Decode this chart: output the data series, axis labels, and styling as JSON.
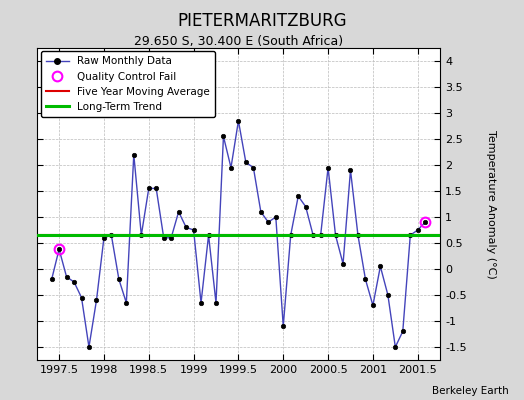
{
  "title": "PIETERMARITZBURG",
  "subtitle": "29.650 S, 30.400 E (South Africa)",
  "ylabel": "Temperature Anomaly (°C)",
  "credit": "Berkeley Earth",
  "xlim": [
    1997.25,
    2001.75
  ],
  "ylim": [
    -1.75,
    4.25
  ],
  "yticks": [
    -1.5,
    -1.0,
    -0.5,
    0.0,
    0.5,
    1.0,
    1.5,
    2.0,
    2.5,
    3.0,
    3.5,
    4.0
  ],
  "xticks": [
    1997.5,
    1998.0,
    1998.5,
    1999.0,
    1999.5,
    2000.0,
    2000.5,
    2001.0,
    2001.5
  ],
  "xtick_labels": [
    "1997.5",
    "1998",
    "1998.5",
    "1999",
    "1999.5",
    "2000",
    "2000.5",
    "2001",
    "2001.5"
  ],
  "long_term_trend_y": 0.65,
  "raw_data": [
    [
      1997.417,
      -0.2
    ],
    [
      1997.5,
      0.38
    ],
    [
      1997.583,
      -0.15
    ],
    [
      1997.667,
      -0.25
    ],
    [
      1997.75,
      -0.55
    ],
    [
      1997.833,
      -1.5
    ],
    [
      1997.917,
      -0.6
    ],
    [
      1998.0,
      0.6
    ],
    [
      1998.083,
      0.65
    ],
    [
      1998.167,
      -0.2
    ],
    [
      1998.25,
      -0.65
    ],
    [
      1998.333,
      2.2
    ],
    [
      1998.417,
      0.65
    ],
    [
      1998.5,
      1.55
    ],
    [
      1998.583,
      1.55
    ],
    [
      1998.667,
      0.6
    ],
    [
      1998.75,
      0.6
    ],
    [
      1998.833,
      1.1
    ],
    [
      1998.917,
      0.8
    ],
    [
      1999.0,
      0.75
    ],
    [
      1999.083,
      -0.65
    ],
    [
      1999.167,
      0.65
    ],
    [
      1999.25,
      -0.65
    ],
    [
      1999.333,
      2.55
    ],
    [
      1999.417,
      1.95
    ],
    [
      1999.5,
      2.85
    ],
    [
      1999.583,
      2.05
    ],
    [
      1999.667,
      1.95
    ],
    [
      1999.75,
      1.1
    ],
    [
      1999.833,
      0.9
    ],
    [
      1999.917,
      1.0
    ],
    [
      2000.0,
      -1.1
    ],
    [
      2000.083,
      0.65
    ],
    [
      2000.167,
      1.4
    ],
    [
      2000.25,
      1.2
    ],
    [
      2000.333,
      0.65
    ],
    [
      2000.417,
      0.65
    ],
    [
      2000.5,
      1.95
    ],
    [
      2000.583,
      0.65
    ],
    [
      2000.667,
      0.1
    ],
    [
      2000.75,
      1.9
    ],
    [
      2000.833,
      0.65
    ],
    [
      2000.917,
      -0.2
    ],
    [
      2001.0,
      -0.7
    ],
    [
      2001.083,
      0.05
    ],
    [
      2001.167,
      -0.5
    ],
    [
      2001.25,
      -1.5
    ],
    [
      2001.333,
      -1.2
    ],
    [
      2001.417,
      0.65
    ],
    [
      2001.5,
      0.75
    ],
    [
      2001.583,
      0.9
    ]
  ],
  "qc_fail_points": [
    [
      1997.5,
      0.38
    ],
    [
      2001.583,
      0.9
    ]
  ],
  "line_color": "#4444bb",
  "marker_color": "#000000",
  "qc_color": "#ff00ff",
  "trend_color": "#00bb00",
  "avg_color": "#dd0000",
  "bg_color": "#d8d8d8",
  "plot_bg_color": "#ffffff"
}
